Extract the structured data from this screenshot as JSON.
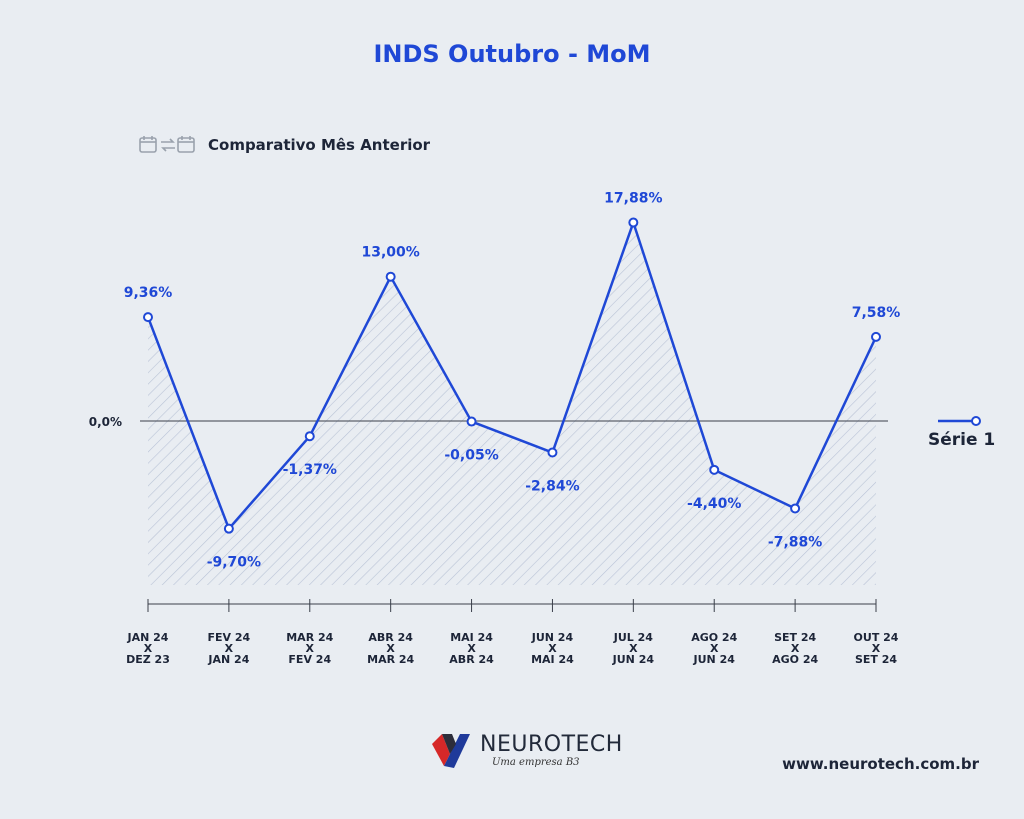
{
  "header": {
    "title": "INDS Outubro - MoM",
    "subtitle": "Comparativo Mês Anterior"
  },
  "legend": {
    "label": "Série 1"
  },
  "footer": {
    "brand": "NEUROTECH",
    "tagline": "Uma empresa B3",
    "url": "www.neurotech.com.br"
  },
  "colors": {
    "accent": "#1f48d6",
    "text": "#1d2538",
    "background": "#e9edf2"
  },
  "chart_data": {
    "type": "line",
    "title": "INDS Outubro - MoM",
    "subtitle": "Comparativo Mês Anterior",
    "categories": [
      [
        "JAN 24",
        "X",
        "DEZ 23"
      ],
      [
        "FEV 24",
        "X",
        "JAN 24"
      ],
      [
        "MAR 24",
        "X",
        "FEV 24"
      ],
      [
        "ABR 24",
        "X",
        "MAR 24"
      ],
      [
        "MAI 24",
        "X",
        "ABR 24"
      ],
      [
        "JUN 24",
        "X",
        "MAI 24"
      ],
      [
        "JUL 24",
        "X",
        "JUN 24"
      ],
      [
        "AGO 24",
        "X",
        "JUN 24"
      ],
      [
        "SET 24",
        "X",
        "AGO 24"
      ],
      [
        "OUT 24",
        "X",
        "SET 24"
      ]
    ],
    "series": [
      {
        "name": "Série 1",
        "values": [
          9.36,
          -9.7,
          -1.37,
          13.0,
          -0.05,
          -2.84,
          17.88,
          -4.4,
          -7.88,
          7.58
        ],
        "labels": [
          "9,36%",
          "-9,70%",
          "-1,37%",
          "13,00%",
          "-0,05%",
          "-2,84%",
          "17,88%",
          "-4,40%",
          "-7,88%",
          "7,58%"
        ]
      }
    ],
    "zero_label": "0,0%",
    "ylim": [
      -16,
      20
    ],
    "legend_position": "right",
    "grid": false
  }
}
